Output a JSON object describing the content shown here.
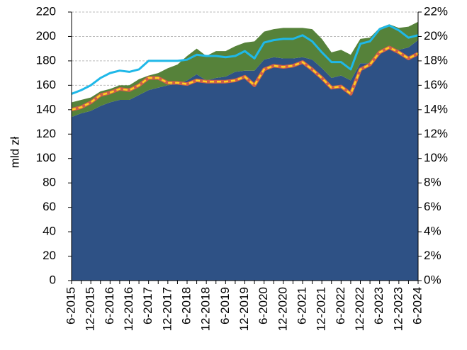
{
  "chart_data": {
    "type": "area",
    "y_label": "mld zł",
    "categories": [
      "6-2015",
      null,
      "12-2015",
      null,
      "6-2016",
      null,
      "12-2016",
      null,
      "6-2017",
      null,
      "12-2017",
      null,
      "6-2018",
      null,
      "12-2018",
      null,
      "6-2019",
      null,
      "12-2019",
      null,
      "6-2020",
      null,
      "12-2020",
      null,
      "6-2021",
      null,
      "12-2021",
      null,
      "6-2022",
      null,
      "12-2022",
      null,
      "6-2023",
      null,
      "12-2023",
      null,
      "6-2024"
    ],
    "series": [
      {
        "type": "area",
        "color": "#2e5185",
        "values": [
          134,
          137,
          139,
          143,
          146,
          148,
          148,
          152,
          156,
          158,
          160,
          161,
          164,
          169,
          164,
          166,
          167,
          171,
          172,
          172,
          181,
          183,
          182,
          182,
          183,
          181,
          174,
          166,
          168,
          164,
          178,
          178,
          186,
          190,
          189,
          191,
          197
        ]
      },
      {
        "type": "area",
        "color": "#56823a",
        "values": [
          12,
          11,
          11,
          12,
          11,
          12,
          12,
          13,
          12,
          12,
          14,
          16,
          20,
          21,
          20,
          22,
          21,
          21,
          23,
          24,
          23,
          23,
          25,
          25,
          24,
          25,
          24,
          21,
          21,
          21,
          20,
          21,
          21,
          20,
          18,
          17,
          15
        ]
      },
      {
        "type": "line",
        "axis": "y2",
        "color": "#1fb8e8",
        "values": [
          15.3,
          15.6,
          16.0,
          16.6,
          17.0,
          17.2,
          17.1,
          17.3,
          18.0,
          18.0,
          18.0,
          18.0,
          18.1,
          18.5,
          18.4,
          18.4,
          18.3,
          18.4,
          18.8,
          18.2,
          19.5,
          19.7,
          19.8,
          19.8,
          20.1,
          19.6,
          18.7,
          17.9,
          17.9,
          17.3,
          19.4,
          19.6,
          20.6,
          20.9,
          20.5,
          19.9,
          20.1
        ]
      },
      {
        "type": "line",
        "axis": "y2",
        "color": "#ffd21f",
        "border_color": "#d0604a",
        "dashed": true,
        "values": [
          14.0,
          14.2,
          14.6,
          15.2,
          15.4,
          15.7,
          15.6,
          16.0,
          16.6,
          16.6,
          16.2,
          16.2,
          16.1,
          16.4,
          16.3,
          16.3,
          16.3,
          16.4,
          16.7,
          16.0,
          17.3,
          17.6,
          17.5,
          17.6,
          17.9,
          17.3,
          16.6,
          15.8,
          15.9,
          15.3,
          17.3,
          17.7,
          18.7,
          19.1,
          18.7,
          18.2,
          18.6
        ]
      }
    ],
    "ylim": [
      0,
      220
    ],
    "yticks": [
      0,
      20,
      40,
      60,
      80,
      100,
      120,
      140,
      160,
      180,
      200,
      220
    ],
    "y2lim": [
      0,
      22
    ],
    "y2ticks": [
      {
        "value": 0,
        "label": "0%"
      },
      {
        "value": 2,
        "label": "2%"
      },
      {
        "value": 4,
        "label": "4%"
      },
      {
        "value": 6,
        "label": "6%"
      },
      {
        "value": 8,
        "label": "8%"
      },
      {
        "value": 10,
        "label": "10%"
      },
      {
        "value": 12,
        "label": "12%"
      },
      {
        "value": 14,
        "label": "14%"
      },
      {
        "value": 16,
        "label": "16%"
      },
      {
        "value": 18,
        "label": "18%"
      },
      {
        "value": 20,
        "label": "20%"
      },
      {
        "value": 22,
        "label": "22%"
      }
    ],
    "grid": true
  }
}
